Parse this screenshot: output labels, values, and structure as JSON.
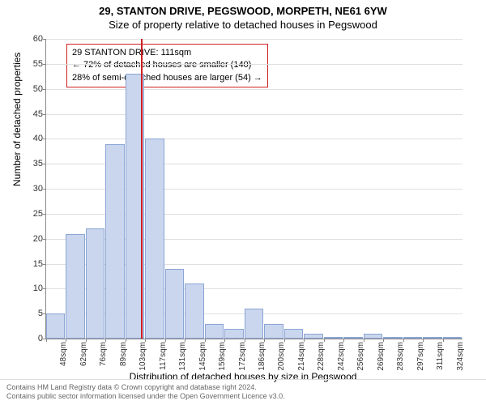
{
  "header": {
    "address": "29, STANTON DRIVE, PEGSWOOD, MORPETH, NE61 6YW",
    "subtitle": "Size of property relative to detached houses in Pegswood"
  },
  "chart": {
    "type": "histogram",
    "ylabel": "Number of detached properties",
    "xlabel": "Distribution of detached houses by size in Pegswood",
    "ylim": [
      0,
      60
    ],
    "ytick_step": 5,
    "ytick_fontsize": 11,
    "xtick_fontsize": 10,
    "label_fontsize": 12,
    "bar_color": "#c9d6ee",
    "bar_border_color": "#8ca5d4",
    "grid_color": "#e0e0e0",
    "axis_color": "#888888",
    "background_color": "#ffffff",
    "x_tick_labels": [
      "48sqm",
      "62sqm",
      "76sqm",
      "89sqm",
      "103sqm",
      "117sqm",
      "131sqm",
      "145sqm",
      "159sqm",
      "172sqm",
      "186sqm",
      "200sqm",
      "214sqm",
      "228sqm",
      "242sqm",
      "256sqm",
      "269sqm",
      "283sqm",
      "297sqm",
      "311sqm",
      "324sqm"
    ],
    "bar_values": [
      5,
      21,
      22,
      39,
      53,
      40,
      14,
      11,
      3,
      2,
      6,
      3,
      2,
      1,
      0,
      0,
      1,
      0,
      0,
      0,
      0
    ],
    "marker": {
      "value_sqm": 111,
      "color": "#d02020",
      "line_width": 2
    },
    "callout": {
      "line1": "29 STANTON DRIVE: 111sqm",
      "line2": "← 72% of detached houses are smaller (140)",
      "line3": "28% of semi-detached houses are larger (54) →",
      "border_color": "#d02020",
      "background_color": "#ffffff",
      "fontsize": 11
    }
  },
  "footer": {
    "line1": "Contains HM Land Registry data © Crown copyright and database right 2024.",
    "line2": "Contains public sector information licensed under the Open Government Licence v3.0."
  }
}
